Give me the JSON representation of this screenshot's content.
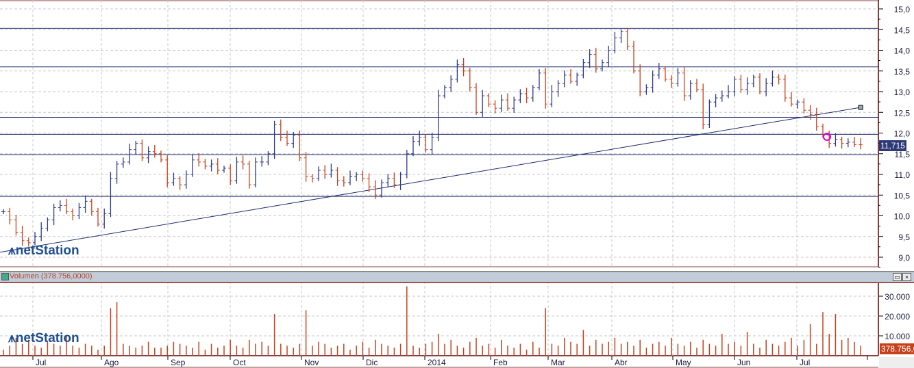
{
  "chart_data": [
    {
      "type": "ohlc",
      "title": "Price",
      "ylim": [
        8.8,
        15.2
      ],
      "yticks": [
        "9,0",
        "9,5",
        "10,0",
        "10,5",
        "11,0",
        "11,5",
        "12,0",
        "12,5",
        "13,0",
        "13,5",
        "14,0",
        "14,5",
        "15,0"
      ],
      "ytick_values": [
        9,
        9.5,
        10,
        10.5,
        11,
        11.5,
        12,
        12.5,
        13,
        13.5,
        14,
        14.5,
        15
      ],
      "horizontal_lines": [
        14.53,
        13.6,
        12.38,
        11.97,
        11.48,
        10.47
      ],
      "trendline": {
        "from": [
          0,
          9.12
        ],
        "to": [
          136,
          12.62
        ]
      },
      "last_value": "11,715",
      "closes": [
        10.1,
        9.9,
        9.6,
        9.4,
        9.35,
        9.5,
        9.7,
        9.9,
        10.2,
        10.25,
        10.1,
        10.0,
        10.2,
        10.35,
        10.1,
        9.8,
        10.05,
        10.9,
        11.25,
        11.3,
        11.6,
        11.75,
        11.4,
        11.55,
        11.5,
        11.35,
        10.8,
        10.9,
        10.75,
        11.0,
        11.35,
        11.3,
        11.2,
        11.25,
        11.1,
        11.15,
        10.85,
        11.3,
        11.25,
        10.75,
        11.3,
        11.3,
        11.5,
        12.2,
        11.9,
        11.75,
        11.95,
        11.4,
        10.95,
        10.9,
        11.1,
        11.0,
        11.1,
        10.85,
        10.8,
        10.95,
        11.0,
        10.9,
        10.7,
        10.5,
        10.8,
        10.9,
        10.75,
        11.0,
        11.5,
        11.8,
        11.9,
        11.6,
        11.9,
        12.9,
        13.1,
        13.3,
        13.65,
        13.5,
        13.1,
        12.5,
        12.9,
        12.7,
        12.6,
        12.8,
        12.6,
        12.8,
        12.95,
        12.85,
        13.1,
        13.45,
        12.7,
        13.0,
        13.2,
        13.4,
        13.25,
        13.4,
        13.7,
        13.9,
        13.55,
        13.7,
        14.0,
        14.3,
        14.45,
        14.1,
        13.5,
        13.0,
        13.1,
        13.4,
        13.55,
        13.3,
        13.2,
        13.45,
        12.9,
        13.2,
        13.05,
        12.2,
        12.75,
        12.85,
        12.9,
        13.0,
        13.3,
        13.05,
        13.2,
        13.35,
        13.0,
        13.2,
        13.35,
        13.3,
        12.85,
        12.7,
        12.75,
        12.55,
        12.45,
        12.15,
        11.95,
        11.75,
        11.85,
        11.75,
        11.78,
        11.72,
        11.715
      ]
    },
    {
      "type": "bar",
      "title": "Volumen (378.756,0000)",
      "ylim": [
        0,
        38000
      ],
      "yticks": [
        "10.000",
        "20.000",
        "30.000"
      ],
      "ytick_values": [
        10000,
        20000,
        30000
      ],
      "last_value": "378.756,0",
      "values": [
        3,
        5,
        9,
        6,
        8,
        5,
        4,
        7,
        6,
        5,
        10,
        5,
        4,
        6,
        5,
        3,
        5,
        24,
        27,
        6,
        5,
        4,
        5,
        7,
        4,
        4,
        5,
        7,
        6,
        5,
        4,
        7,
        3,
        6,
        4,
        5,
        8,
        5,
        4,
        8,
        6,
        7,
        5,
        21,
        6,
        5,
        4,
        6,
        23,
        5,
        7,
        6,
        4,
        5,
        6,
        3,
        5,
        7,
        4,
        8,
        6,
        5,
        4,
        6,
        35,
        5,
        4,
        6,
        7,
        11,
        6,
        8,
        5,
        4,
        7,
        9,
        5,
        6,
        4,
        8,
        5,
        4,
        6,
        3,
        7,
        4,
        24,
        6,
        5,
        9,
        7,
        6,
        13,
        5,
        8,
        6,
        7,
        9,
        6,
        7,
        5,
        8,
        4,
        6,
        7,
        5,
        9,
        6,
        5,
        7,
        4,
        8,
        6,
        5,
        11,
        6,
        7,
        5,
        12,
        6,
        4,
        8,
        6,
        5,
        7,
        9,
        5,
        8,
        16,
        6,
        22,
        11,
        21,
        8,
        9,
        7,
        5
      ]
    }
  ],
  "x_axis": {
    "labels": [
      "Jul",
      "Ago",
      "Sep",
      "Oct",
      "Nov",
      "Dic",
      "2014",
      "Feb",
      "Mar",
      "Abr",
      "May",
      "Jun",
      "Jul"
    ]
  },
  "volume_header": "Volumen (378.756,0000)",
  "watermark": "netStation",
  "colors": {
    "up": "#2e3a88",
    "down": "#c8401a",
    "axis": "#8b4040",
    "line": "#1e2a6e",
    "grid": "#c8c8c8"
  }
}
